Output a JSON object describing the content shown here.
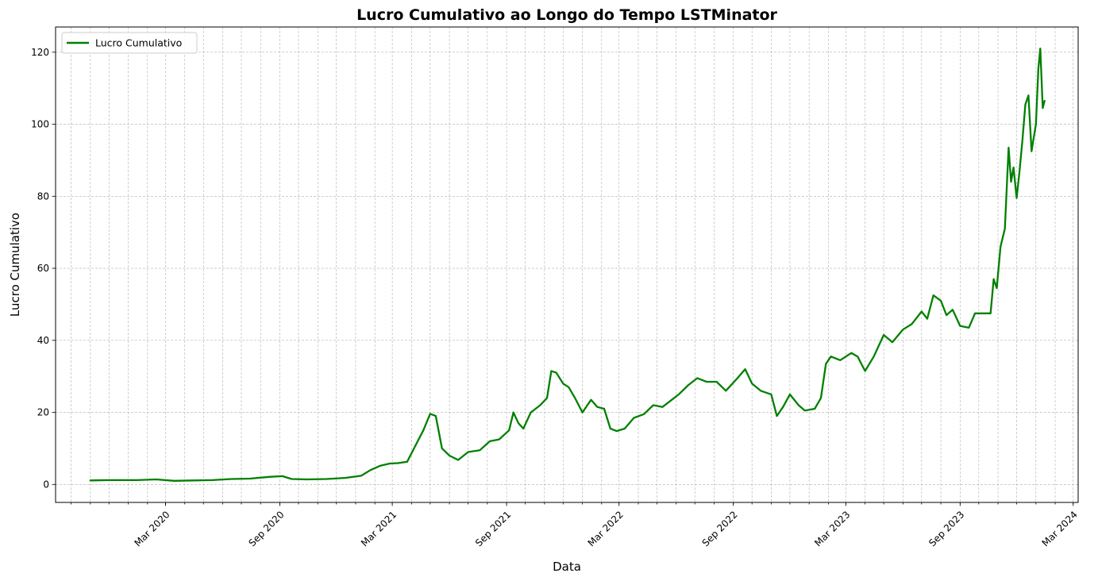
{
  "chart_data": {
    "type": "line",
    "title": "Lucro Cumulativo ao Longo do Tempo LSTMinator",
    "xlabel": "Data",
    "ylabel": "Lucro Cumulativo",
    "grid": true,
    "legend_position": "top-left",
    "xlim": [
      "2019-09-06",
      "2024-03-09"
    ],
    "ylim": [
      -5,
      127
    ],
    "x_ticks": [
      {
        "date": "2020-03-01",
        "label": "Mar 2020"
      },
      {
        "date": "2020-09-01",
        "label": "Sep 2020"
      },
      {
        "date": "2021-03-01",
        "label": "Mar 2021"
      },
      {
        "date": "2021-09-01",
        "label": "Sep 2021"
      },
      {
        "date": "2022-03-01",
        "label": "Mar 2022"
      },
      {
        "date": "2022-09-01",
        "label": "Sep 2022"
      },
      {
        "date": "2023-03-01",
        "label": "Mar 2023"
      },
      {
        "date": "2023-09-01",
        "label": "Sep 2023"
      },
      {
        "date": "2024-03-01",
        "label": "Mar 2024"
      }
    ],
    "y_ticks": [
      0,
      20,
      40,
      60,
      80,
      100,
      120
    ],
    "series": [
      {
        "name": "Lucro Cumulativo",
        "color": "#008000",
        "points": [
          [
            "2019-11-01",
            1.1
          ],
          [
            "2019-12-01",
            1.2
          ],
          [
            "2020-01-15",
            1.2
          ],
          [
            "2020-02-15",
            1.4
          ],
          [
            "2020-03-15",
            1.0
          ],
          [
            "2020-04-15",
            1.1
          ],
          [
            "2020-05-15",
            1.2
          ],
          [
            "2020-06-15",
            1.5
          ],
          [
            "2020-07-15",
            1.6
          ],
          [
            "2020-08-15",
            2.1
          ],
          [
            "2020-09-05",
            2.3
          ],
          [
            "2020-09-20",
            1.5
          ],
          [
            "2020-10-15",
            1.4
          ],
          [
            "2020-11-15",
            1.5
          ],
          [
            "2020-12-15",
            1.8
          ],
          [
            "2021-01-10",
            2.4
          ],
          [
            "2021-01-25",
            4.0
          ],
          [
            "2021-02-10",
            5.2
          ],
          [
            "2021-02-25",
            5.8
          ],
          [
            "2021-03-10",
            5.9
          ],
          [
            "2021-03-25",
            6.3
          ],
          [
            "2021-04-05",
            10.0
          ],
          [
            "2021-04-20",
            15.0
          ],
          [
            "2021-05-01",
            19.6
          ],
          [
            "2021-05-10",
            19.0
          ],
          [
            "2021-05-20",
            10.0
          ],
          [
            "2021-06-01",
            8.0
          ],
          [
            "2021-06-15",
            6.8
          ],
          [
            "2021-07-01",
            9.0
          ],
          [
            "2021-07-20",
            9.5
          ],
          [
            "2021-08-05",
            12.0
          ],
          [
            "2021-08-20",
            12.5
          ],
          [
            "2021-09-05",
            15.0
          ],
          [
            "2021-09-12",
            20.0
          ],
          [
            "2021-09-20",
            17.0
          ],
          [
            "2021-09-28",
            15.5
          ],
          [
            "2021-10-10",
            20.0
          ],
          [
            "2021-10-25",
            22.0
          ],
          [
            "2021-11-05",
            24.0
          ],
          [
            "2021-11-12",
            31.5
          ],
          [
            "2021-11-20",
            31.0
          ],
          [
            "2021-12-01",
            28.0
          ],
          [
            "2021-12-10",
            27.0
          ],
          [
            "2021-12-20",
            24.0
          ],
          [
            "2022-01-01",
            20.0
          ],
          [
            "2022-01-15",
            23.5
          ],
          [
            "2022-01-25",
            21.5
          ],
          [
            "2022-02-05",
            21.0
          ],
          [
            "2022-02-15",
            15.5
          ],
          [
            "2022-02-25",
            14.8
          ],
          [
            "2022-03-10",
            15.5
          ],
          [
            "2022-03-25",
            18.5
          ],
          [
            "2022-04-10",
            19.5
          ],
          [
            "2022-04-25",
            22.0
          ],
          [
            "2022-05-10",
            21.5
          ],
          [
            "2022-05-25",
            23.5
          ],
          [
            "2022-06-05",
            25.0
          ],
          [
            "2022-06-20",
            27.5
          ],
          [
            "2022-07-05",
            29.5
          ],
          [
            "2022-07-20",
            28.5
          ],
          [
            "2022-08-05",
            28.5
          ],
          [
            "2022-08-20",
            26.0
          ],
          [
            "2022-09-05",
            29.0
          ],
          [
            "2022-09-20",
            32.0
          ],
          [
            "2022-10-01",
            28.0
          ],
          [
            "2022-10-15",
            26.0
          ],
          [
            "2022-11-01",
            25.0
          ],
          [
            "2022-11-10",
            19.0
          ],
          [
            "2022-11-20",
            21.5
          ],
          [
            "2022-12-01",
            25.0
          ],
          [
            "2022-12-15",
            22.0
          ],
          [
            "2022-12-25",
            20.5
          ],
          [
            "2023-01-10",
            21.0
          ],
          [
            "2023-01-20",
            24.0
          ],
          [
            "2023-01-28",
            33.5
          ],
          [
            "2023-02-05",
            35.5
          ],
          [
            "2023-02-20",
            34.5
          ],
          [
            "2023-03-10",
            36.5
          ],
          [
            "2023-03-20",
            35.5
          ],
          [
            "2023-04-01",
            31.5
          ],
          [
            "2023-04-15",
            35.5
          ],
          [
            "2023-05-01",
            41.5
          ],
          [
            "2023-05-15",
            39.5
          ],
          [
            "2023-06-01",
            43.0
          ],
          [
            "2023-06-15",
            44.5
          ],
          [
            "2023-07-01",
            48.0
          ],
          [
            "2023-07-10",
            46.0
          ],
          [
            "2023-07-20",
            52.5
          ],
          [
            "2023-08-01",
            51.0
          ],
          [
            "2023-08-10",
            47.0
          ],
          [
            "2023-08-20",
            48.5
          ],
          [
            "2023-09-01",
            44.0
          ],
          [
            "2023-09-15",
            43.5
          ],
          [
            "2023-09-25",
            47.5
          ],
          [
            "2023-10-05",
            47.5
          ],
          [
            "2023-10-20",
            47.5
          ],
          [
            "2023-10-25",
            57.0
          ],
          [
            "2023-10-30",
            54.5
          ],
          [
            "2023-11-05",
            66.0
          ],
          [
            "2023-11-12",
            71.0
          ],
          [
            "2023-11-18",
            93.5
          ],
          [
            "2023-11-22",
            84.0
          ],
          [
            "2023-11-26",
            88.0
          ],
          [
            "2023-12-01",
            79.5
          ],
          [
            "2023-12-05",
            86.0
          ],
          [
            "2023-12-10",
            95.0
          ],
          [
            "2023-12-15",
            105.5
          ],
          [
            "2023-12-20",
            108.0
          ],
          [
            "2023-12-25",
            92.5
          ],
          [
            "2024-01-01",
            100.0
          ],
          [
            "2024-01-05",
            115.5
          ],
          [
            "2024-01-08",
            121.0
          ],
          [
            "2024-01-12",
            104.5
          ],
          [
            "2024-01-15",
            106.5
          ]
        ]
      }
    ]
  }
}
